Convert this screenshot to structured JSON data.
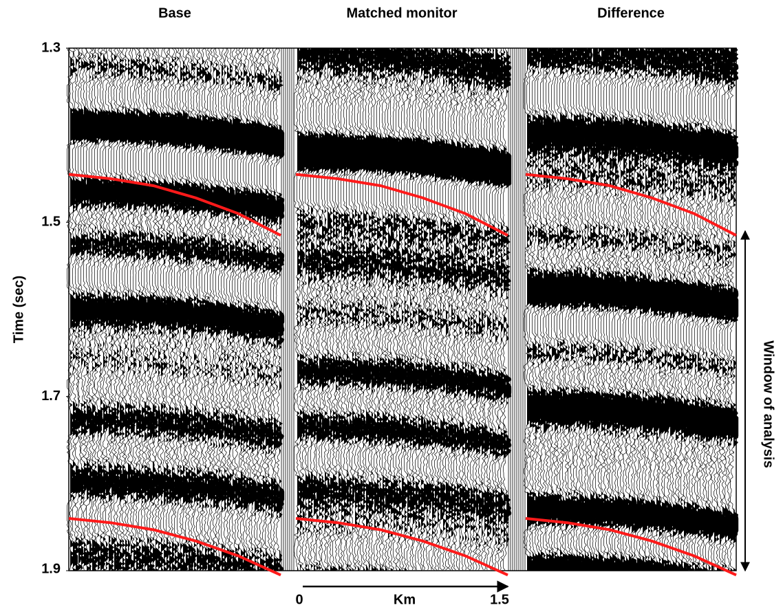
{
  "chart_data": {
    "type": "seismic",
    "panels": [
      "Base",
      "Matched monitor",
      "Difference"
    ],
    "ylabel": "Time (sec)",
    "ylim": [
      1.3,
      1.9
    ],
    "yticks": [
      1.3,
      1.5,
      1.7,
      1.9
    ],
    "xlabel": "Km",
    "xlim": [
      0,
      1.5
    ],
    "xticks": [
      0,
      1.5
    ],
    "horizons": [
      {
        "color": "#ff1a1a",
        "x": [
          0,
          0.3,
          0.6,
          0.9,
          1.2,
          1.5
        ],
        "values": [
          1.445,
          1.45,
          1.458,
          1.472,
          1.49,
          1.515
        ]
      },
      {
        "color": "#ff1a1a",
        "x": [
          0,
          0.3,
          0.6,
          0.9,
          1.2,
          1.5
        ],
        "values": [
          1.84,
          1.845,
          1.853,
          1.866,
          1.883,
          1.905
        ]
      }
    ],
    "annotation": "Window of analysis",
    "window": [
      1.51,
      1.9
    ]
  }
}
